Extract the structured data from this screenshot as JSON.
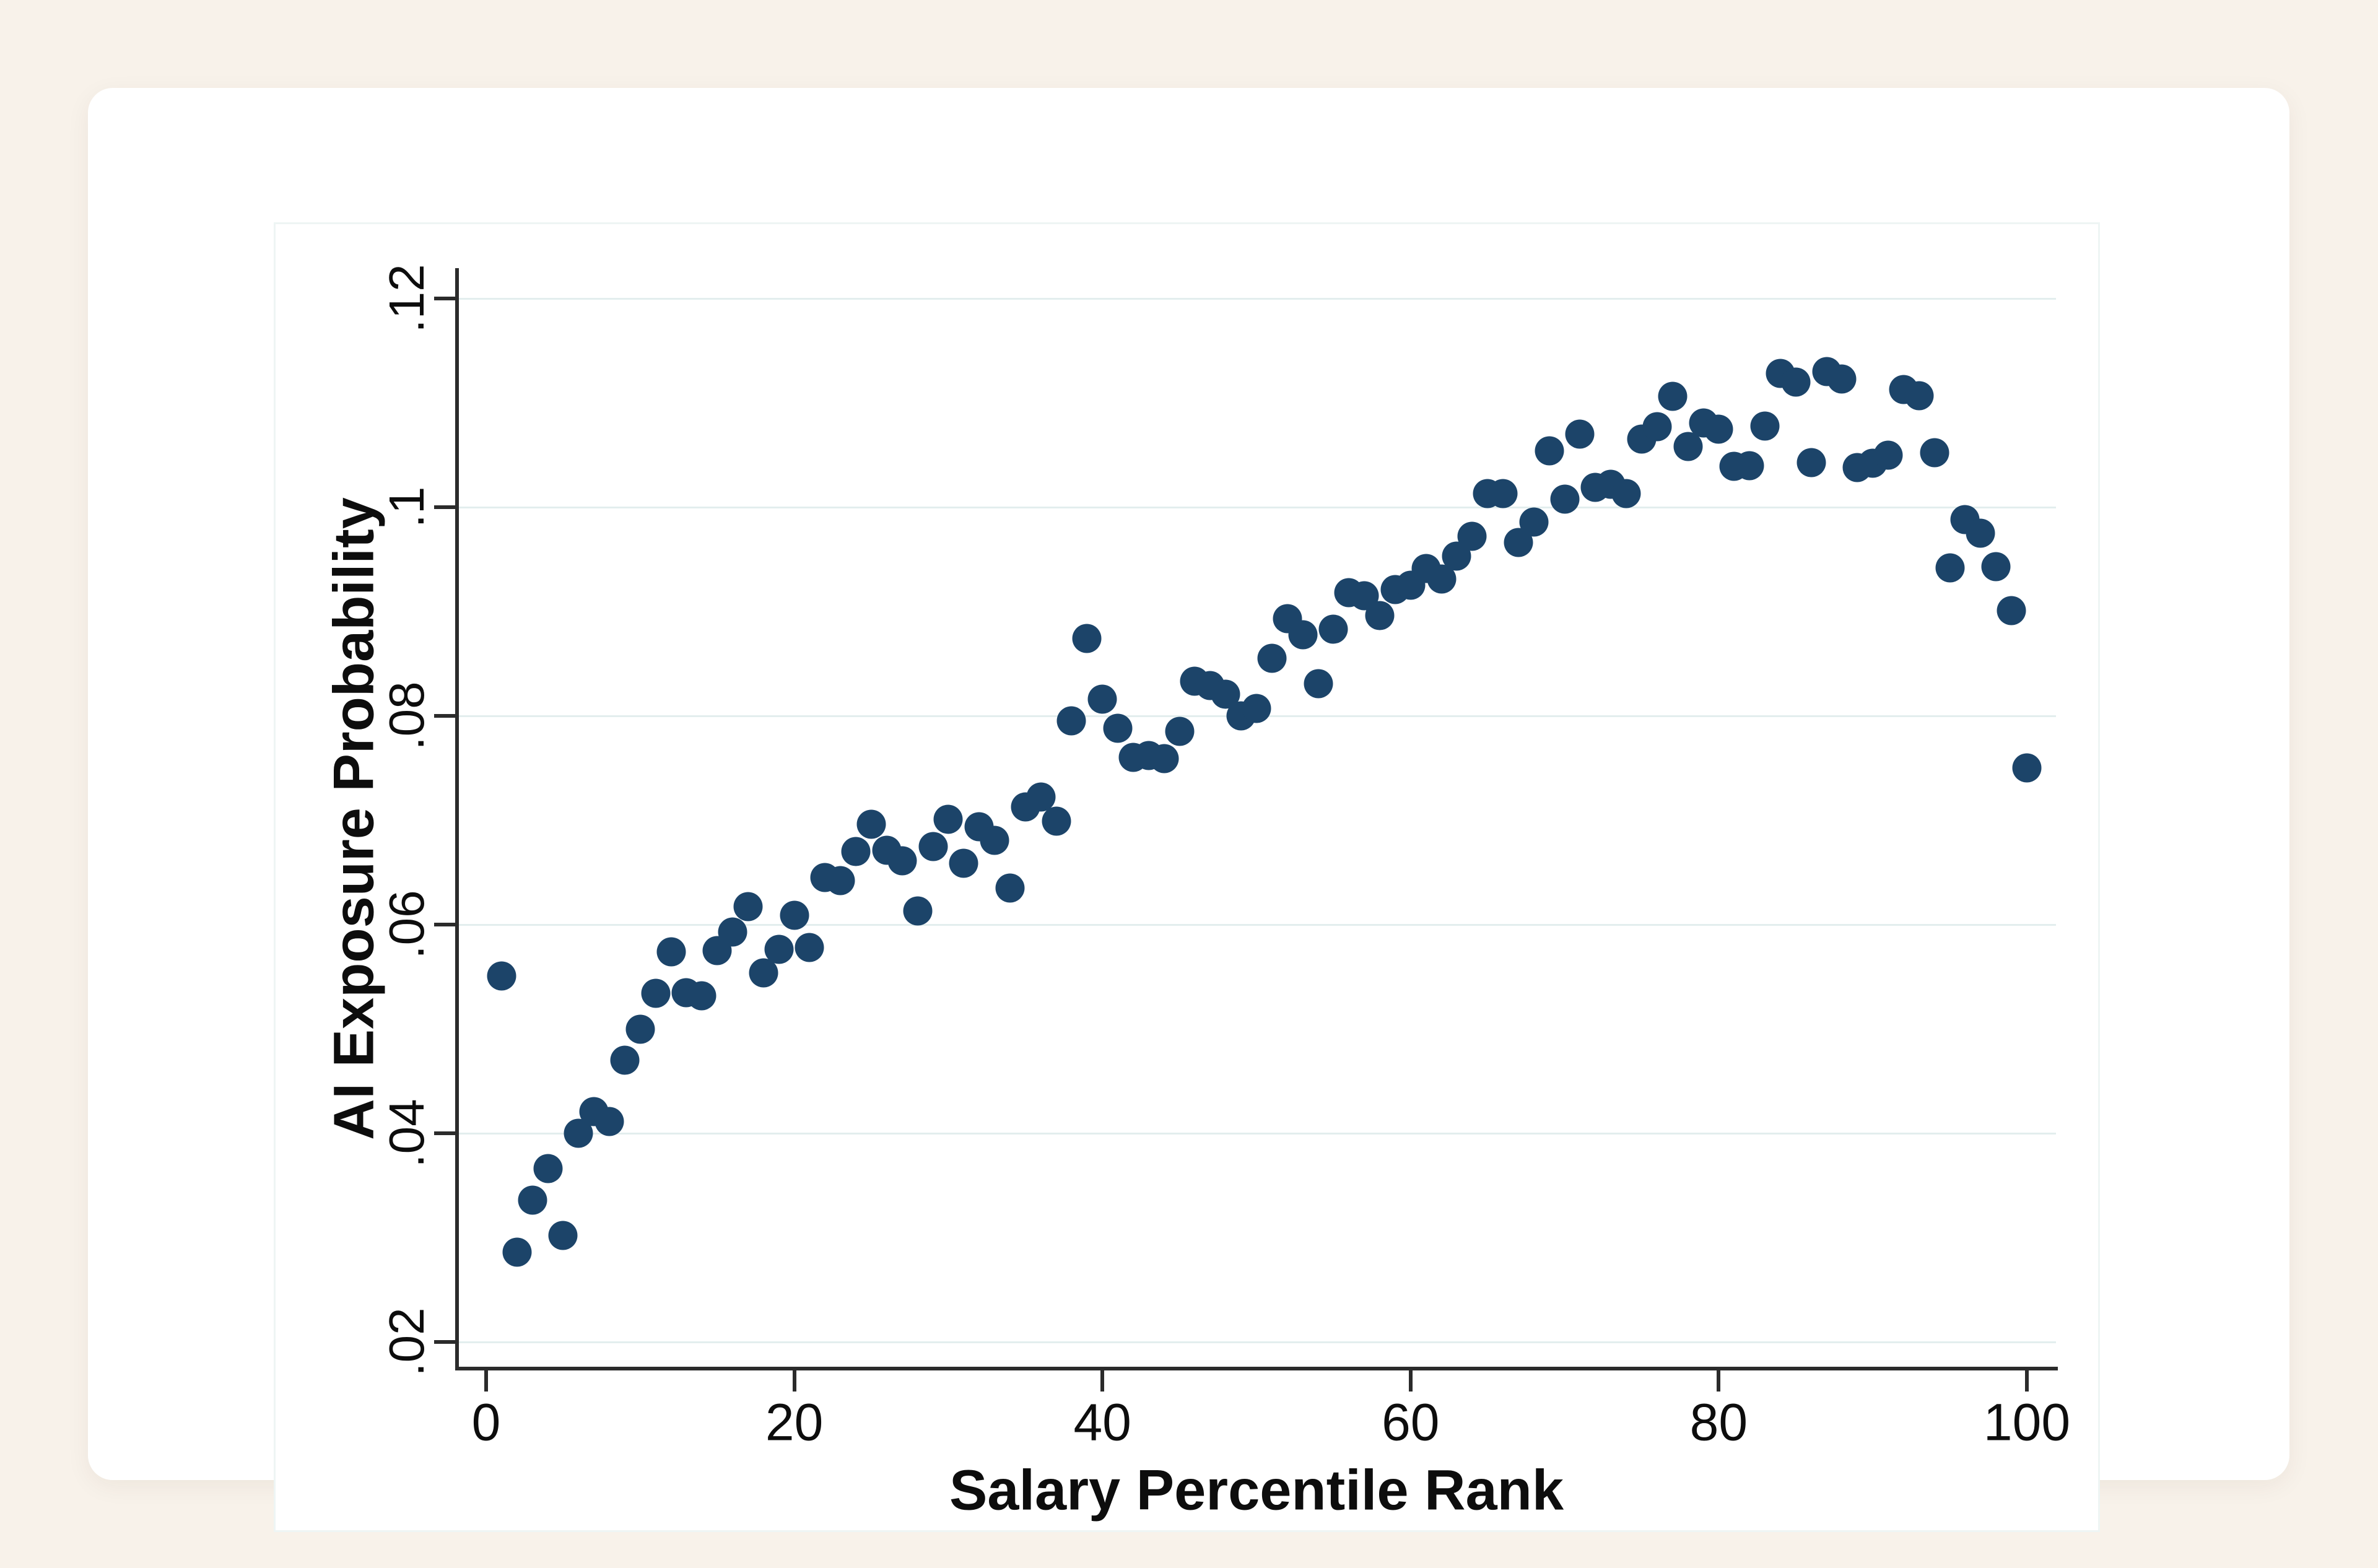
{
  "page": {
    "background_color": "#f8f2ea",
    "card_color": "#ffffff",
    "gridline_color": "#e3eeee",
    "axis_color": "#2b2b2b",
    "text_color": "#0d0d0d"
  },
  "chart_data": {
    "type": "scatter",
    "title": "",
    "xlabel": "Salary Percentile Rank",
    "ylabel": "AI Exposure Probability",
    "xlim": [
      0,
      100
    ],
    "ylim": [
      0.02,
      0.12
    ],
    "grid": "horizontal",
    "legend": "none",
    "marker_color": "#1c4469",
    "x_ticks": {
      "values": [
        0,
        20,
        40,
        60,
        80,
        100
      ],
      "labels": [
        "0",
        "20",
        "40",
        "60",
        "80",
        "100"
      ]
    },
    "y_ticks": {
      "values": [
        0.02,
        0.04,
        0.06,
        0.08,
        0.1,
        0.12
      ],
      "labels": [
        ".02",
        ".04",
        ".06",
        ".08",
        ".1",
        ".12"
      ]
    },
    "x": [
      1,
      2,
      3,
      4,
      5,
      6,
      7,
      8,
      9,
      10,
      11,
      12,
      13,
      14,
      15,
      16,
      17,
      18,
      19,
      20,
      21,
      22,
      23,
      24,
      25,
      26,
      27,
      28,
      29,
      30,
      31,
      32,
      33,
      34,
      35,
      36,
      37,
      38,
      39,
      40,
      41,
      42,
      43,
      44,
      45,
      46,
      47,
      48,
      49,
      50,
      51,
      52,
      53,
      54,
      55,
      56,
      57,
      58,
      59,
      60,
      61,
      62,
      63,
      64,
      65,
      66,
      67,
      68,
      69,
      70,
      71,
      72,
      73,
      74,
      75,
      76,
      77,
      78,
      79,
      80,
      81,
      82,
      83,
      84,
      85,
      86,
      87,
      88,
      89,
      90,
      91,
      92,
      93,
      94,
      95,
      96,
      97,
      98,
      99,
      100
    ],
    "y": [
      0.0551,
      0.0286,
      0.0336,
      0.0366,
      0.0302,
      0.04,
      0.0421,
      0.0411,
      0.047,
      0.05,
      0.0534,
      0.0574,
      0.0535,
      0.0532,
      0.0575,
      0.0593,
      0.0617,
      0.0554,
      0.0576,
      0.0609,
      0.0578,
      0.0645,
      0.0642,
      0.067,
      0.0696,
      0.0671,
      0.0661,
      0.0613,
      0.0675,
      0.0701,
      0.0659,
      0.0694,
      0.0681,
      0.0635,
      0.0713,
      0.0722,
      0.0699,
      0.0795,
      0.0874,
      0.0816,
      0.0788,
      0.076,
      0.0762,
      0.0759,
      0.0785,
      0.0833,
      0.0829,
      0.0821,
      0.08,
      0.0807,
      0.0855,
      0.0893,
      0.0878,
      0.0831,
      0.0883,
      0.0918,
      0.0915,
      0.0896,
      0.0921,
      0.0925,
      0.0941,
      0.0931,
      0.0953,
      0.0972,
      0.1013,
      0.1013,
      0.0966,
      0.0986,
      0.1054,
      0.1008,
      0.107,
      0.1019,
      0.1022,
      0.1013,
      0.1065,
      0.1077,
      0.1106,
      0.1058,
      0.1081,
      0.1075,
      0.1039,
      0.104,
      0.1078,
      0.1128,
      0.112,
      0.1043,
      0.113,
      0.1123,
      0.1038,
      0.1042,
      0.105,
      0.1113,
      0.1107,
      0.1052,
      0.0942,
      0.0988,
      0.0975,
      0.0943,
      0.0901,
      0.075
    ]
  }
}
